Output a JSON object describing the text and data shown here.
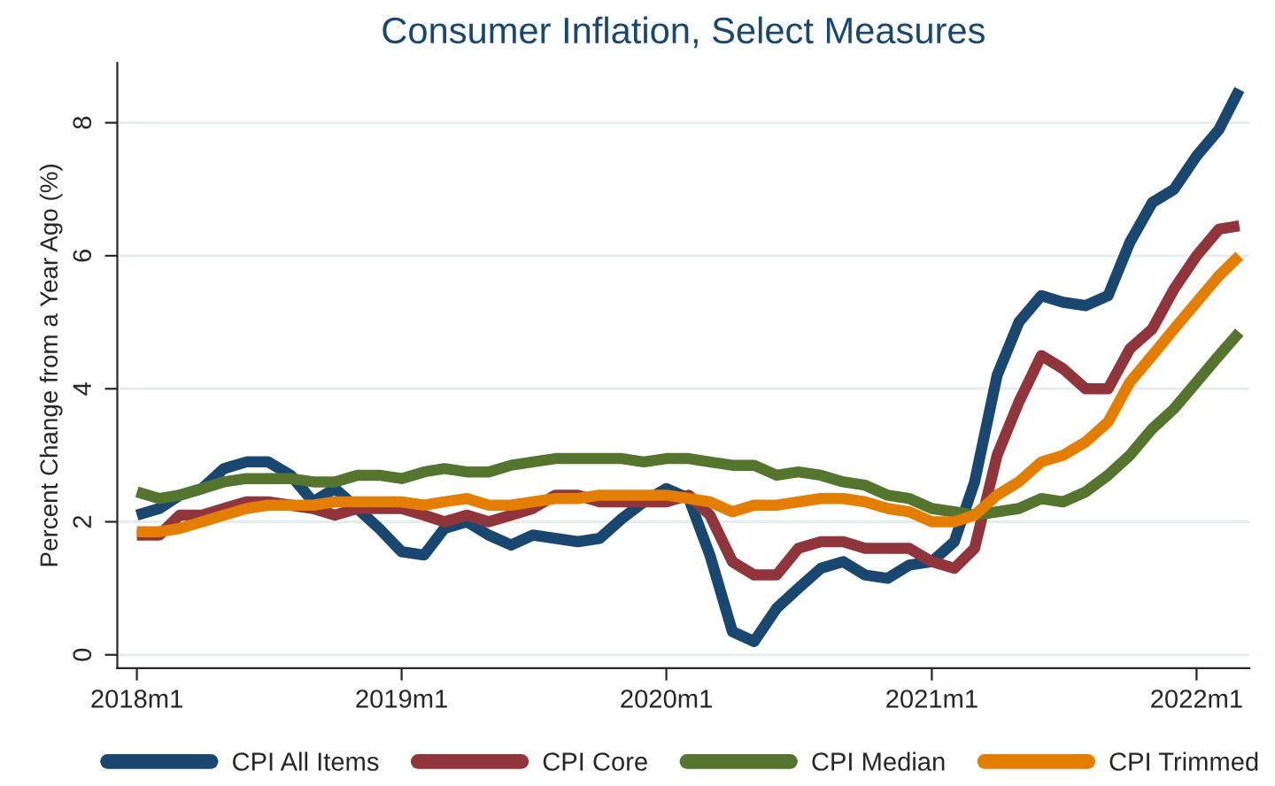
{
  "chart_data": {
    "type": "line",
    "title": "Consumer Inflation, Select Measures",
    "ylabel": "Percent Change from a Year Ago (%)",
    "x": [
      "2018-01",
      "2018-02",
      "2018-03",
      "2018-04",
      "2018-05",
      "2018-06",
      "2018-07",
      "2018-08",
      "2018-09",
      "2018-10",
      "2018-11",
      "2018-12",
      "2019-01",
      "2019-02",
      "2019-03",
      "2019-04",
      "2019-05",
      "2019-06",
      "2019-07",
      "2019-08",
      "2019-09",
      "2019-10",
      "2019-11",
      "2019-12",
      "2020-01",
      "2020-02",
      "2020-03",
      "2020-04",
      "2020-05",
      "2020-06",
      "2020-07",
      "2020-08",
      "2020-09",
      "2020-10",
      "2020-11",
      "2020-12",
      "2021-01",
      "2021-02",
      "2021-03",
      "2021-04",
      "2021-05",
      "2021-06",
      "2021-07",
      "2021-08",
      "2021-09",
      "2021-10",
      "2021-11",
      "2021-12",
      "2022-01",
      "2022-02",
      "2022-03"
    ],
    "series": [
      {
        "name": "CPI All Items",
        "color": "#1a476f",
        "values": [
          2.1,
          2.2,
          2.4,
          2.5,
          2.8,
          2.9,
          2.9,
          2.7,
          2.3,
          2.5,
          2.2,
          1.9,
          1.55,
          1.5,
          1.9,
          2.0,
          1.8,
          1.65,
          1.8,
          1.75,
          1.7,
          1.75,
          2.05,
          2.3,
          2.5,
          2.35,
          1.5,
          0.35,
          0.2,
          0.7,
          1.0,
          1.3,
          1.4,
          1.2,
          1.15,
          1.35,
          1.4,
          1.7,
          2.6,
          4.2,
          5.0,
          5.4,
          5.3,
          5.25,
          5.4,
          6.2,
          6.8,
          7.0,
          7.5,
          7.9,
          8.5
        ]
      },
      {
        "name": "CPI Core",
        "color": "#90353b",
        "values": [
          1.8,
          1.8,
          2.1,
          2.1,
          2.2,
          2.3,
          2.3,
          2.25,
          2.2,
          2.1,
          2.2,
          2.2,
          2.2,
          2.1,
          2.0,
          2.1,
          2.0,
          2.1,
          2.2,
          2.4,
          2.4,
          2.3,
          2.3,
          2.3,
          2.3,
          2.4,
          2.1,
          1.4,
          1.2,
          1.2,
          1.6,
          1.7,
          1.7,
          1.6,
          1.6,
          1.6,
          1.4,
          1.3,
          1.6,
          3.0,
          3.8,
          4.5,
          4.3,
          4.0,
          4.0,
          4.6,
          4.9,
          5.5,
          6.0,
          6.4,
          6.45
        ]
      },
      {
        "name": "CPI Median",
        "color": "#55752f",
        "values": [
          2.45,
          2.35,
          2.4,
          2.5,
          2.6,
          2.65,
          2.65,
          2.65,
          2.6,
          2.6,
          2.7,
          2.7,
          2.65,
          2.75,
          2.8,
          2.75,
          2.75,
          2.85,
          2.9,
          2.95,
          2.95,
          2.95,
          2.95,
          2.9,
          2.95,
          2.95,
          2.9,
          2.85,
          2.85,
          2.7,
          2.75,
          2.7,
          2.6,
          2.55,
          2.4,
          2.35,
          2.2,
          2.15,
          2.1,
          2.15,
          2.2,
          2.35,
          2.3,
          2.45,
          2.7,
          3.0,
          3.4,
          3.7,
          4.1,
          4.5,
          4.85
        ]
      },
      {
        "name": "CPI Trimmed",
        "color": "#e37e00",
        "values": [
          1.85,
          1.85,
          1.9,
          2.0,
          2.1,
          2.2,
          2.25,
          2.25,
          2.25,
          2.3,
          2.3,
          2.3,
          2.3,
          2.25,
          2.3,
          2.35,
          2.25,
          2.25,
          2.3,
          2.35,
          2.35,
          2.4,
          2.4,
          2.4,
          2.4,
          2.35,
          2.3,
          2.15,
          2.25,
          2.25,
          2.3,
          2.35,
          2.35,
          2.3,
          2.2,
          2.15,
          2.0,
          2.0,
          2.1,
          2.4,
          2.6,
          2.9,
          3.0,
          3.2,
          3.5,
          4.1,
          4.5,
          4.9,
          5.3,
          5.7,
          6.0
        ]
      }
    ],
    "xlim": [
      "2017-12-05",
      "2022-03-15"
    ],
    "xticks": [
      {
        "value": "2018-01",
        "label": "2018m1"
      },
      {
        "value": "2019-01",
        "label": "2019m1"
      },
      {
        "value": "2020-01",
        "label": "2020m1"
      },
      {
        "value": "2021-01",
        "label": "2021m1"
      },
      {
        "value": "2022-01",
        "label": "2022m1"
      }
    ],
    "ylim": [
      -0.2,
      8.9
    ],
    "yticks": [
      0,
      2,
      4,
      6,
      8
    ],
    "grid": "y",
    "legend": "bottom",
    "line_style": "solid",
    "marker": "none"
  }
}
